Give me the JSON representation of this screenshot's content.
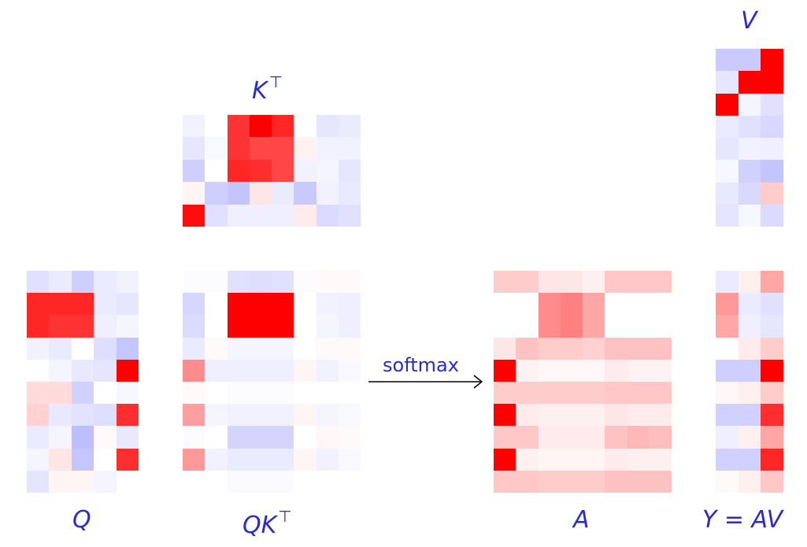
{
  "labels": {
    "q": "Q",
    "kt_base": "K",
    "kt_sup": "⊤",
    "qkt_base": "QK",
    "qkt_sup": "⊤",
    "a": "A",
    "v": "V",
    "y": "Y = AV"
  },
  "operator": {
    "text": "softmax"
  },
  "colors": {
    "label": "#2a2ad0",
    "positive": "#ff0000",
    "negative": "#5a5aff"
  },
  "matrices": {
    "KT": [
      [
        -0.08,
        0.0,
        0.8,
        1.0,
        0.85,
        0.0,
        -0.15,
        -0.12
      ],
      [
        -0.15,
        -0.04,
        0.8,
        0.72,
        0.72,
        0.05,
        -0.08,
        -0.08
      ],
      [
        -0.3,
        0.0,
        0.85,
        0.82,
        0.72,
        -0.08,
        -0.06,
        -0.15
      ],
      [
        0.04,
        -0.3,
        -0.36,
        0.1,
        -0.12,
        -0.33,
        -0.08,
        -0.13
      ],
      [
        0.95,
        -0.18,
        -0.1,
        -0.1,
        -0.1,
        0.08,
        -0.22,
        -0.18
      ]
    ],
    "V": [
      [
        -0.32,
        -0.32,
        1.0
      ],
      [
        -0.15,
        1.0,
        1.0
      ],
      [
        1.0,
        -0.06,
        -0.18
      ],
      [
        -0.12,
        -0.18,
        -0.24
      ],
      [
        -0.15,
        -0.08,
        -0.1
      ],
      [
        -0.05,
        -0.28,
        -0.36
      ],
      [
        -0.14,
        -0.23,
        0.2
      ],
      [
        -0.16,
        -0.05,
        -0.22
      ]
    ],
    "Q": [
      [
        -0.18,
        -0.12,
        -0.3,
        -0.12,
        -0.08
      ],
      [
        0.85,
        0.85,
        0.85,
        -0.12,
        -0.15
      ],
      [
        0.85,
        0.8,
        0.8,
        -0.1,
        -0.06
      ],
      [
        -0.08,
        -0.12,
        0.0,
        -0.2,
        -0.35
      ],
      [
        0.0,
        -0.06,
        -0.14,
        -0.16,
        1.0
      ],
      [
        0.14,
        0.14,
        -0.28,
        0.0,
        -0.05
      ],
      [
        0.18,
        -0.14,
        -0.17,
        -0.2,
        0.82
      ],
      [
        -0.12,
        -0.06,
        -0.4,
        0.02,
        -0.14
      ],
      [
        -0.06,
        0.1,
        -0.35,
        0.0,
        0.82
      ],
      [
        -0.16,
        0.04,
        0.04,
        -0.06,
        0.0
      ]
    ],
    "QKT": [
      [
        -0.02,
        -0.02,
        -0.18,
        -0.2,
        -0.18,
        -0.02,
        0.02,
        0.02
      ],
      [
        -0.25,
        0.0,
        1.0,
        1.0,
        1.0,
        0.0,
        -0.08,
        -0.1
      ],
      [
        -0.22,
        0.0,
        1.0,
        1.0,
        1.0,
        0.0,
        -0.06,
        -0.1
      ],
      [
        -0.12,
        0.02,
        -0.06,
        -0.06,
        -0.06,
        0.0,
        0.02,
        0.02
      ],
      [
        0.45,
        -0.1,
        -0.1,
        -0.1,
        -0.1,
        0.04,
        -0.08,
        -0.04
      ],
      [
        0.02,
        0.0,
        -0.02,
        -0.02,
        -0.02,
        0.0,
        0.0,
        0.0
      ],
      [
        0.38,
        -0.06,
        -0.08,
        -0.08,
        -0.08,
        0.04,
        -0.06,
        -0.04
      ],
      [
        -0.02,
        0.0,
        -0.26,
        -0.26,
        -0.26,
        0.0,
        0.03,
        0.02
      ],
      [
        0.4,
        -0.08,
        -0.12,
        -0.12,
        -0.12,
        0.04,
        -0.08,
        -0.04
      ],
      [
        0.0,
        0.0,
        -0.03,
        -0.03,
        -0.03,
        0.0,
        0.0,
        0.0
      ]
    ],
    "A": [
      [
        0.2,
        0.2,
        0.1,
        0.1,
        0.06,
        0.22,
        0.22,
        0.22
      ],
      [
        0.0,
        0.0,
        0.45,
        0.5,
        0.35,
        0.0,
        0.0,
        0.0
      ],
      [
        0.0,
        0.0,
        0.45,
        0.5,
        0.35,
        0.0,
        0.0,
        0.0
      ],
      [
        0.1,
        0.24,
        0.2,
        0.2,
        0.18,
        0.24,
        0.24,
        0.24
      ],
      [
        1.0,
        0.05,
        0.03,
        0.03,
        0.03,
        0.08,
        0.05,
        0.05
      ],
      [
        0.2,
        0.2,
        0.2,
        0.2,
        0.2,
        0.22,
        0.22,
        0.22
      ],
      [
        1.0,
        0.08,
        0.06,
        0.06,
        0.06,
        0.1,
        0.08,
        0.08
      ],
      [
        0.22,
        0.22,
        0.08,
        0.08,
        0.08,
        0.24,
        0.28,
        0.26
      ],
      [
        1.0,
        0.06,
        0.04,
        0.04,
        0.04,
        0.08,
        0.06,
        0.06
      ],
      [
        0.22,
        0.22,
        0.2,
        0.2,
        0.2,
        0.24,
        0.24,
        0.24
      ]
    ],
    "Y": [
      [
        -0.12,
        0.06,
        0.35
      ],
      [
        0.4,
        -0.12,
        -0.18
      ],
      [
        0.35,
        -0.1,
        -0.15
      ],
      [
        0.0,
        0.08,
        0.2
      ],
      [
        -0.3,
        -0.3,
        1.0
      ],
      [
        0.03,
        0.06,
        0.2
      ],
      [
        -0.28,
        -0.28,
        0.82
      ],
      [
        -0.1,
        0.06,
        0.35
      ],
      [
        -0.28,
        -0.28,
        0.85
      ],
      [
        0.02,
        0.06,
        0.22
      ]
    ]
  }
}
